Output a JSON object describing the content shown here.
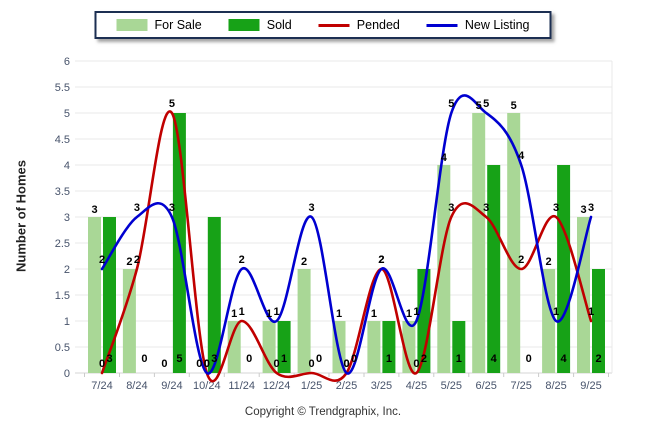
{
  "chart_data": {
    "type": "combo-bar-line",
    "title": "",
    "xlabel": "",
    "ylabel": "Number of Homes",
    "ylim": [
      0,
      6
    ],
    "ytick_step": 0.5,
    "grid": true,
    "legend_position": "top",
    "categories": [
      "7/24",
      "8/24",
      "9/24",
      "10/24",
      "11/24",
      "12/24",
      "1/25",
      "2/25",
      "3/25",
      "4/25",
      "5/25",
      "6/25",
      "7/25",
      "8/25",
      "9/25"
    ],
    "series": [
      {
        "name": "For Sale",
        "type": "bar",
        "color": "#A9D796",
        "values": [
          3,
          2,
          0,
          0,
          1,
          1,
          2,
          1,
          1,
          1,
          4,
          5,
          5,
          2,
          3
        ]
      },
      {
        "name": "Sold",
        "type": "bar",
        "color": "#17A217",
        "values": [
          3,
          0,
          5,
          3,
          0,
          1,
          0,
          0,
          1,
          2,
          1,
          4,
          0,
          4,
          2
        ]
      },
      {
        "name": "Pended",
        "type": "line",
        "color": "#C00000",
        "values": [
          0,
          2,
          5,
          0,
          1,
          0,
          0,
          0,
          2,
          0,
          3,
          3,
          2,
          3,
          1
        ]
      },
      {
        "name": "New Listing",
        "type": "line",
        "color": "#0000D0",
        "values": [
          2,
          3,
          3,
          0,
          2,
          1,
          3,
          0,
          2,
          1,
          5,
          5,
          4,
          1,
          3
        ]
      }
    ]
  },
  "axis_style": {
    "tick_label_color": "#47536B",
    "gridline_color": "#E8E8E8",
    "baseline_color": "#D5D5D5",
    "data_label_color": "#000000"
  },
  "footer": {
    "text": "Copyright © Trendgraphix, Inc."
  }
}
